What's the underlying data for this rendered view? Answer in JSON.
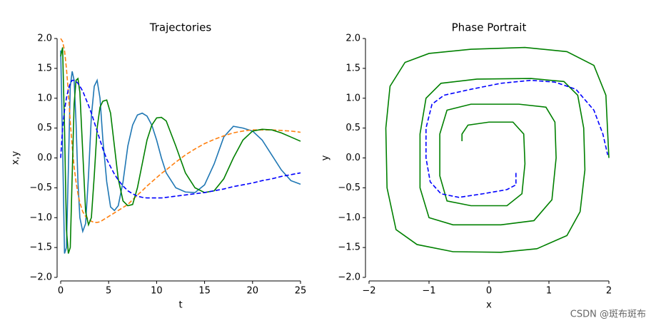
{
  "chart_data": [
    {
      "type": "line",
      "title": "Trajectories",
      "x_label": "t",
      "y_label": "x,y",
      "x": [
        0,
        0.2,
        0.4,
        0.6,
        0.8,
        1.0,
        1.2,
        1.4,
        1.6,
        1.8,
        2.0,
        2.3,
        2.6,
        2.9,
        3.2,
        3.5,
        3.8,
        4.1,
        4.4,
        4.8,
        5.2,
        5.6,
        6,
        6.5,
        7,
        7.5,
        8,
        8.5,
        9,
        9.5,
        10,
        10.5,
        11,
        12,
        13,
        14,
        15,
        16,
        17,
        18,
        19,
        20,
        21,
        22,
        23,
        24,
        25
      ],
      "xlim": [
        0,
        25
      ],
      "xticks": [
        0,
        5,
        10,
        15,
        20,
        25
      ],
      "ylim": [
        -2,
        2
      ],
      "yticks": [
        {
          "value": -2,
          "label": "−2.0"
        },
        {
          "value": -1.5,
          "label": "−1.5"
        },
        {
          "value": -1,
          "label": "−1.0"
        },
        {
          "value": -0.5,
          "label": "−0.5"
        },
        {
          "value": 0,
          "label": "0.0"
        },
        {
          "value": 0.5,
          "label": "0.5"
        },
        {
          "value": 1,
          "label": "1.0"
        },
        {
          "value": 1.5,
          "label": "1.5"
        },
        {
          "value": 2,
          "label": "2.0"
        }
      ],
      "series": [
        {
          "color": "#1f77b4",
          "linestyle": "solid",
          "values": [
            1.8,
            0.2,
            -1.6,
            -1.5,
            -0.2,
            1.2,
            1.45,
            1.3,
            0.6,
            -0.4,
            -1.0,
            -1.23,
            -1.1,
            -0.3,
            0.7,
            1.2,
            1.3,
            1.0,
            0.3,
            -0.4,
            -0.82,
            -0.88,
            -0.8,
            -0.4,
            0.2,
            0.55,
            0.72,
            0.75,
            0.7,
            0.55,
            0.3,
            0.0,
            -0.25,
            -0.5,
            -0.57,
            -0.58,
            -0.45,
            -0.1,
            0.35,
            0.53,
            0.5,
            0.45,
            0.3,
            0.05,
            -0.2,
            -0.38,
            -0.44
          ]
        },
        {
          "color": "#ff7f0e",
          "linestyle": "dashed",
          "values": [
            2.0,
            1.95,
            1.8,
            1.5,
            1.1,
            0.6,
            0.2,
            -0.15,
            -0.4,
            -0.6,
            -0.75,
            -0.9,
            -0.98,
            -1.03,
            -1.06,
            -1.08,
            -1.08,
            -1.07,
            -1.04,
            -1.0,
            -0.96,
            -0.92,
            -0.88,
            -0.83,
            -0.78,
            -0.7,
            -0.62,
            -0.55,
            -0.47,
            -0.4,
            -0.33,
            -0.26,
            -0.2,
            -0.07,
            0.05,
            0.15,
            0.24,
            0.31,
            0.37,
            0.42,
            0.45,
            0.47,
            0.47,
            0.47,
            0.46,
            0.45,
            0.43
          ]
        },
        {
          "color": "#008000",
          "linestyle": "solid",
          "values": [
            1.7,
            1.85,
            0.5,
            -1.2,
            -1.6,
            -1.5,
            -0.3,
            0.9,
            1.3,
            1.33,
            1.1,
            0.1,
            -0.9,
            -1.12,
            -1.0,
            -0.3,
            0.5,
            0.85,
            0.95,
            0.97,
            0.75,
            0.2,
            -0.35,
            -0.72,
            -0.8,
            -0.78,
            -0.5,
            -0.1,
            0.3,
            0.55,
            0.67,
            0.68,
            0.62,
            0.2,
            -0.25,
            -0.5,
            -0.58,
            -0.55,
            -0.35,
            0.0,
            0.3,
            0.45,
            0.48,
            0.47,
            0.42,
            0.35,
            0.28
          ]
        },
        {
          "color": "#0000ff",
          "linestyle": "dashed",
          "values": [
            0.0,
            0.5,
            0.8,
            1.0,
            1.15,
            1.25,
            1.3,
            1.3,
            1.28,
            1.25,
            1.2,
            1.12,
            1.0,
            0.88,
            0.75,
            0.6,
            0.45,
            0.3,
            0.15,
            -0.02,
            -0.15,
            -0.27,
            -0.37,
            -0.47,
            -0.55,
            -0.6,
            -0.64,
            -0.66,
            -0.67,
            -0.67,
            -0.67,
            -0.67,
            -0.66,
            -0.64,
            -0.62,
            -0.6,
            -0.58,
            -0.55,
            -0.52,
            -0.48,
            -0.45,
            -0.42,
            -0.38,
            -0.35,
            -0.31,
            -0.28,
            -0.25
          ]
        }
      ]
    },
    {
      "type": "line",
      "title": "Phase Portrait",
      "x_label": "x",
      "y_label": "y",
      "xlim": [
        -2,
        2
      ],
      "xticks": [
        {
          "value": -2,
          "label": "−2"
        },
        {
          "value": -1,
          "label": "−1"
        },
        0,
        1,
        2
      ],
      "ylim": [
        -2,
        2
      ],
      "yticks": [
        {
          "value": -2,
          "label": "−2.0"
        },
        {
          "value": -1.5,
          "label": "−1.5"
        },
        {
          "value": -1,
          "label": "−1.0"
        },
        {
          "value": -0.5,
          "label": "−0.5"
        },
        {
          "value": 0,
          "label": "0.0"
        },
        {
          "value": 0.5,
          "label": "0.5"
        },
        {
          "value": 1,
          "label": "1.0"
        },
        {
          "value": 1.5,
          "label": "1.5"
        },
        {
          "value": 2,
          "label": "2.0"
        }
      ],
      "series": [
        {
          "color": "#008000",
          "linestyle": "solid",
          "x": [
            2,
            1.95,
            1.75,
            1.3,
            0.6,
            -0.3,
            -1.0,
            -1.4,
            -1.65,
            -1.72,
            -1.7,
            -1.55,
            -1.2,
            -0.6,
            0.2,
            0.8,
            1.3,
            1.52,
            1.6,
            1.58,
            1.48,
            1.25,
            0.7,
            -0.2,
            -0.8,
            -1.05,
            -1.15,
            -1.15,
            -1.0,
            -0.6,
            0.2,
            0.75,
            1.05,
            1.12,
            1.1,
            0.95,
            0.5,
            -0.3,
            -0.7,
            -0.82,
            -0.82,
            -0.7,
            -0.3,
            0.3,
            0.55,
            0.6,
            0.58,
            0.4,
            0.0,
            -0.35,
            -0.45,
            -0.45
          ],
          "values": [
            0,
            1.05,
            1.55,
            1.78,
            1.85,
            1.82,
            1.75,
            1.6,
            1.2,
            0.5,
            -0.5,
            -1.2,
            -1.45,
            -1.57,
            -1.58,
            -1.52,
            -1.3,
            -0.9,
            -0.2,
            0.5,
            1.05,
            1.28,
            1.33,
            1.32,
            1.25,
            1.0,
            0.4,
            -0.5,
            -1.0,
            -1.12,
            -1.12,
            -1.05,
            -0.7,
            0.0,
            0.6,
            0.85,
            0.9,
            0.9,
            0.8,
            0.4,
            -0.3,
            -0.72,
            -0.8,
            -0.8,
            -0.6,
            -0.1,
            0.4,
            0.6,
            0.6,
            0.55,
            0.4,
            0.28
          ]
        },
        {
          "color": "#0000ff",
          "linestyle": "dashed",
          "x": [
            0.45,
            0.45,
            0.3,
            -0.1,
            -0.5,
            -0.8,
            -0.98,
            -1.05,
            -1.05,
            -0.95,
            -0.75,
            -0.3,
            0.2,
            0.7,
            1.1,
            1.45,
            1.75,
            1.9,
            1.98
          ],
          "values": [
            -0.25,
            -0.45,
            -0.53,
            -0.6,
            -0.66,
            -0.6,
            -0.4,
            0.0,
            0.5,
            0.9,
            1.05,
            1.15,
            1.25,
            1.3,
            1.27,
            1.15,
            0.8,
            0.4,
            0.05
          ]
        }
      ]
    }
  ],
  "watermark": "CSDN @斑布斑布"
}
